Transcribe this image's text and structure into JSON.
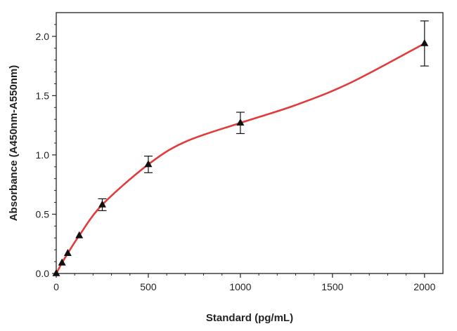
{
  "chart_data": {
    "type": "line",
    "xlabel": "Standard (pg/mL)",
    "ylabel": "Absorbance (A450nm-A550nm)",
    "xlim": [
      0,
      2100
    ],
    "ylim": [
      0,
      2.2
    ],
    "x_ticks": [
      0,
      500,
      1000,
      1500,
      2000
    ],
    "x_tick_labels": [
      "0",
      "500",
      "1000",
      "1500",
      "2000"
    ],
    "y_ticks": [
      0,
      0.5,
      1.0,
      1.5,
      2.0
    ],
    "y_tick_labels": [
      "0.0",
      "0.5",
      "1.0",
      "1.5",
      "2.0"
    ],
    "grid": false,
    "legend": "none",
    "series": [
      {
        "marker": "triangle",
        "color": "#111111",
        "points": [
          {
            "x": 0,
            "y": 0.0,
            "err": 0
          },
          {
            "x": 31.25,
            "y": 0.09,
            "err": 0.01
          },
          {
            "x": 62.5,
            "y": 0.17,
            "err": 0.01
          },
          {
            "x": 125,
            "y": 0.32,
            "err": 0.01
          },
          {
            "x": 250,
            "y": 0.58,
            "err": 0.05
          },
          {
            "x": 500,
            "y": 0.92,
            "err": 0.07
          },
          {
            "x": 1000,
            "y": 1.27,
            "err": 0.09
          },
          {
            "x": 2000,
            "y": 1.94,
            "err": 0.19
          }
        ]
      }
    ],
    "fit_curve": {
      "color": "#e23b3b",
      "x": [
        0,
        31.25,
        62.5,
        125,
        250,
        500,
        700,
        1000,
        1300,
        1600,
        2000
      ],
      "y": [
        0.0,
        0.09,
        0.17,
        0.32,
        0.58,
        0.92,
        1.11,
        1.27,
        1.42,
        1.61,
        1.94
      ]
    },
    "colors": {
      "axis": "#222222",
      "curve": "#e23b3b",
      "marker": "#111111"
    }
  }
}
